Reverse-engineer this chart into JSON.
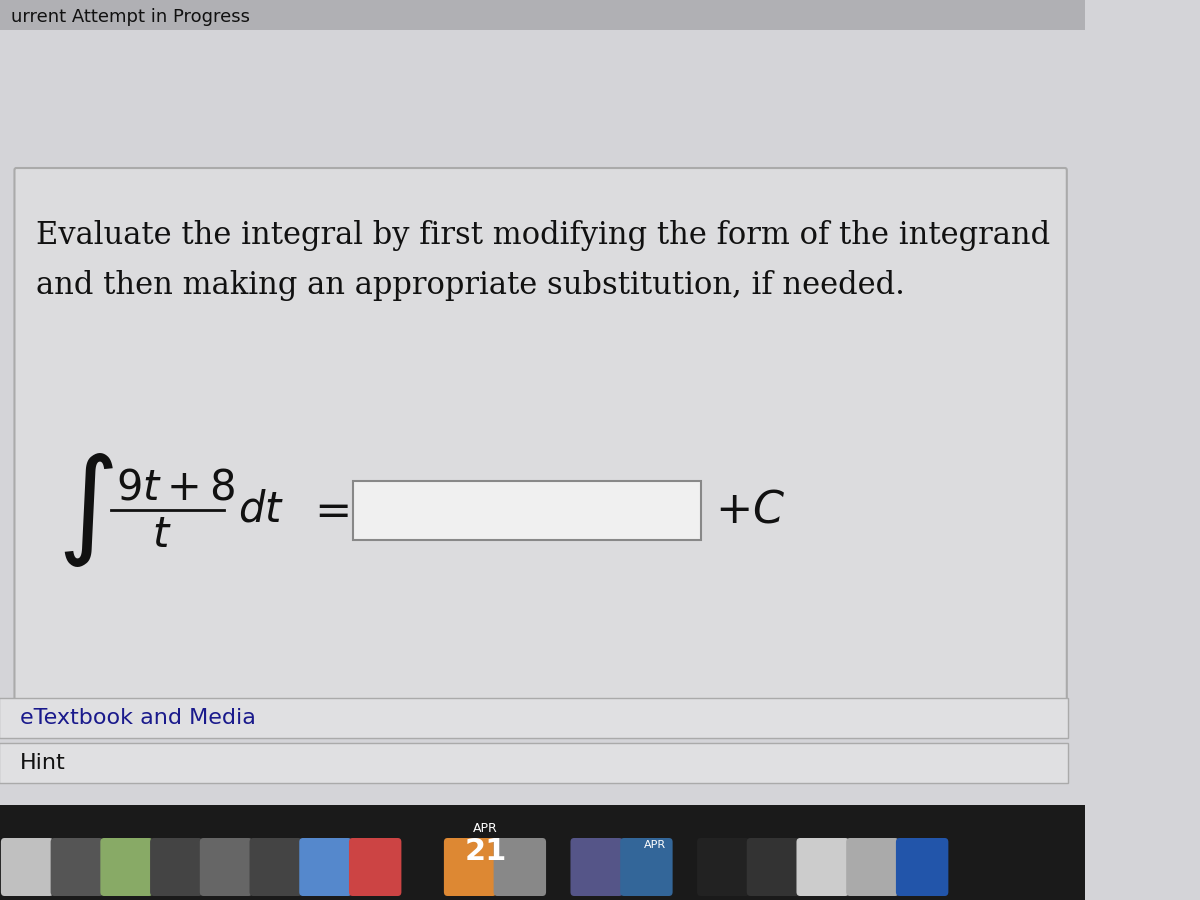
{
  "bg_color": "#d4d4d8",
  "card_bg": "#e8e8ea",
  "card_inner_bg": "#dcdcde",
  "top_bar_text": "urrent Attempt in Progress",
  "top_bar_bg": "#b0b0b4",
  "title_line1": "Evaluate the integral by first modifying the form of the integrand",
  "title_line2": "and then making an appropriate substitution, if needed.",
  "title_fontsize": 22,
  "integral_fontsize": 36,
  "etextbook_text": "eTextbook and Media",
  "hint_text": "Hint",
  "bottom_bar_bg": "#c8c8cc",
  "input_box_color": "#f0f0f0",
  "input_box_border": "#888888",
  "text_color": "#111111",
  "secondary_text_color": "#333333",
  "plus_c_text": "+C",
  "equals_text": "=",
  "footer_bg": "#2a2a2a",
  "apr_text": "APR",
  "date_text": "21"
}
